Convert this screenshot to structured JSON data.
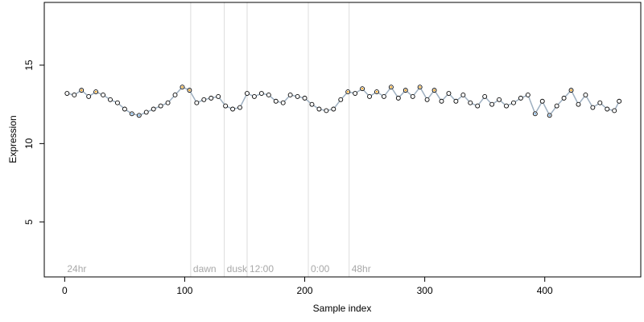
{
  "chart_data": {
    "type": "scatter",
    "title": "",
    "xlabel": "Sample index",
    "ylabel": "Expression",
    "xlim": [
      -17,
      480
    ],
    "ylim": [
      1.5,
      19
    ],
    "xticks": [
      0,
      100,
      200,
      300,
      400
    ],
    "yticks": [
      5,
      10,
      15
    ],
    "grid": false,
    "colors": {
      "points_fill": "#ffffff",
      "points_stroke": "#000000",
      "peak": "#f5a623",
      "trough": "#6fa8dc",
      "fit_line": "#9dafc0",
      "segment_line": "#dcdcdc",
      "annotation_text": "#a8a8a8"
    },
    "segments": [
      {
        "label": "24hr",
        "x": 0
      },
      {
        "label": "dawn",
        "x": 105
      },
      {
        "label": "dusk",
        "x": 133
      },
      {
        "label": "12:00",
        "x": 152
      },
      {
        "label": "0:00",
        "x": 203
      },
      {
        "label": "48hr",
        "x": 237
      }
    ],
    "series": [
      {
        "x": [
          2,
          8,
          14,
          20,
          26,
          32,
          38,
          44,
          50,
          56,
          62,
          68,
          74,
          80,
          86,
          92,
          98,
          104,
          110,
          116,
          122,
          128,
          134,
          140,
          146,
          152,
          158,
          164,
          170,
          176,
          182,
          188,
          194,
          200,
          206,
          212,
          218,
          224,
          230,
          236,
          242,
          248,
          254,
          260,
          266,
          272,
          278,
          284,
          290,
          296,
          302,
          308,
          314,
          320,
          326,
          332,
          338,
          344,
          350,
          356,
          362,
          368,
          374,
          380,
          386,
          392,
          398,
          404,
          410,
          416,
          422,
          428,
          434,
          440,
          446,
          452,
          458,
          462
        ],
        "y": [
          13.2,
          13.1,
          13.4,
          13.0,
          13.3,
          13.1,
          12.8,
          12.6,
          12.2,
          11.9,
          11.8,
          12.0,
          12.2,
          12.4,
          12.6,
          13.1,
          13.6,
          13.4,
          12.6,
          12.8,
          12.9,
          13.0,
          12.4,
          12.2,
          12.3,
          13.2,
          13.0,
          13.2,
          13.1,
          12.7,
          12.6,
          13.1,
          13.0,
          12.9,
          12.5,
          12.2,
          12.1,
          12.2,
          12.8,
          13.3,
          13.2,
          13.5,
          13.0,
          13.3,
          13.0,
          13.6,
          12.9,
          13.4,
          13.0,
          13.6,
          12.8,
          13.4,
          12.7,
          13.2,
          12.7,
          13.1,
          12.6,
          12.4,
          13.0,
          12.5,
          12.8,
          12.4,
          12.6,
          12.9,
          13.1,
          11.9,
          12.7,
          11.8,
          12.4,
          12.9,
          13.4,
          12.5,
          13.1,
          12.3,
          12.6,
          12.2,
          12.1,
          12.7
        ]
      }
    ]
  }
}
